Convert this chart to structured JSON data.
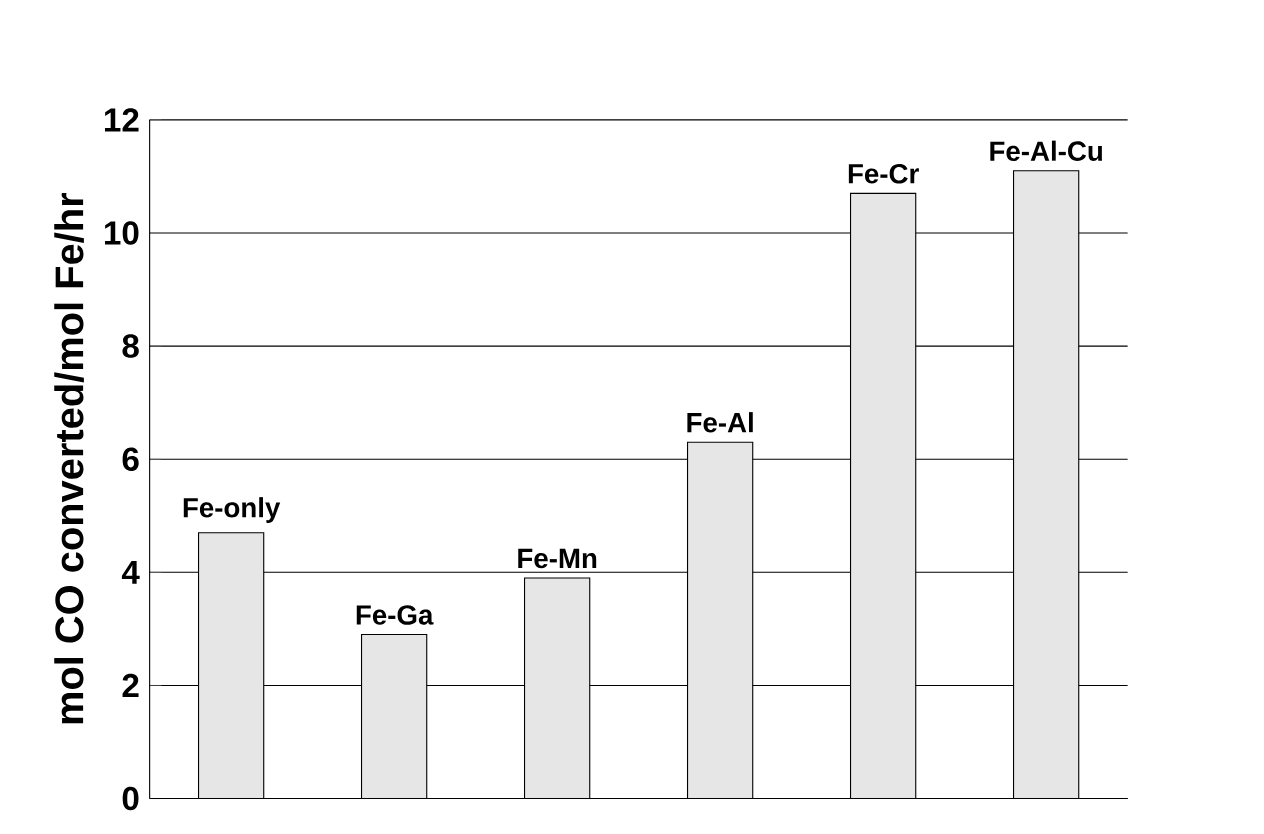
{
  "chart_data": {
    "type": "bar",
    "ylabel": "mol CO converted/mol Fe/hr",
    "categories": [
      "Fe-only",
      "Fe-Ga",
      "Fe-Mn",
      "Fe-Al",
      "Fe-Cr",
      "Fe-Al-Cu"
    ],
    "values": [
      4.7,
      2.9,
      3.9,
      6.3,
      10.7,
      11.1
    ],
    "color": "#e6e6e6",
    "ylim": [
      0,
      12
    ],
    "yticks": [
      0,
      2,
      4,
      6,
      8,
      10,
      12
    ],
    "grid": "y",
    "tick_labels": "y"
  }
}
